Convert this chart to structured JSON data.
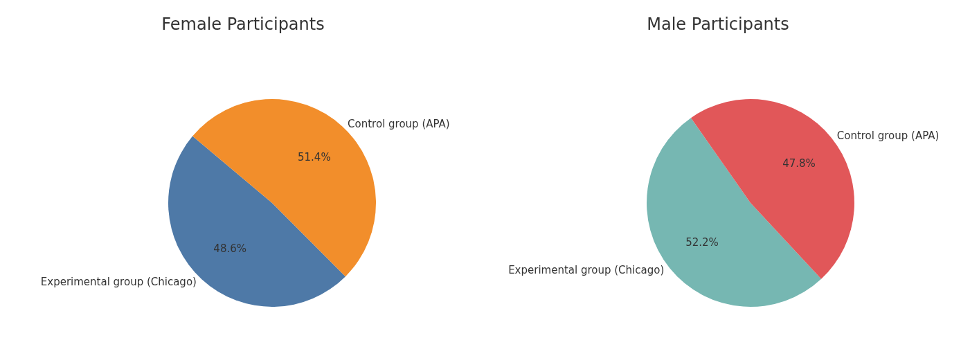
{
  "chart_data": [
    {
      "type": "pie",
      "title": "Female Participants",
      "categories": [
        "Experimental group (Chicago)",
        "Control group (APA)"
      ],
      "values": [
        48.6,
        51.4
      ],
      "value_labels": [
        "48.6%",
        "51.4%"
      ],
      "colors": [
        "#4e79a7",
        "#f28e2b"
      ],
      "legend": false
    },
    {
      "type": "pie",
      "title": "Male Participants",
      "categories": [
        "Experimental group (Chicago)",
        "Control group (APA)"
      ],
      "values": [
        52.2,
        47.8
      ],
      "value_labels": [
        "52.2%",
        "47.8%"
      ],
      "colors": [
        "#76b7b2",
        "#e15759"
      ],
      "legend": false
    }
  ]
}
